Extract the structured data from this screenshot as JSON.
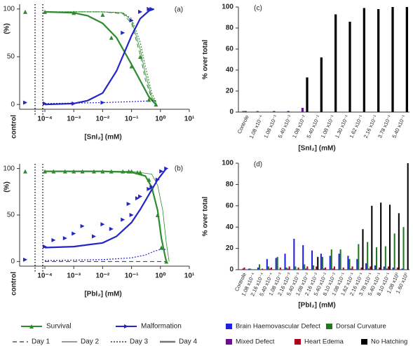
{
  "chart_data": [
    {
      "type": "line",
      "panel_label": "(a)",
      "y_label": "(%)",
      "x_label": "[SnI₂] (mM)",
      "control_label": "control",
      "xscale": "log",
      "xlim": [
        0.0001,
        10
      ],
      "xticks": [
        {
          "value": 0.0001,
          "label": "10⁻⁴"
        },
        {
          "value": 0.001,
          "label": "10⁻³"
        },
        {
          "value": 0.01,
          "label": "10⁻²"
        },
        {
          "value": 0.1,
          "label": "10⁻¹"
        },
        {
          "value": 1,
          "label": "10⁰"
        },
        {
          "value": 10,
          "label": "10¹"
        }
      ],
      "ylim": [
        -5,
        105
      ],
      "yticks": [
        0,
        50,
        100
      ],
      "series": [
        {
          "name": "Survival",
          "color": "#2e8b2e",
          "control": 97,
          "x": [
            0.0001,
            0.001,
            0.01,
            0.02,
            0.1,
            0.2,
            0.4,
            0.7
          ],
          "values": [
            97,
            96,
            94,
            70,
            40,
            50,
            5,
            0
          ]
        },
        {
          "name": "Malformation",
          "color": "#2424c8",
          "control": 2,
          "x": [
            0.0001,
            0.001,
            0.01,
            0.05,
            0.1,
            0.2,
            0.4,
            0.5
          ],
          "values": [
            1,
            1,
            2,
            75,
            88,
            97,
            100,
            100
          ]
        }
      ],
      "curves": [
        {
          "series": 0,
          "day": 4,
          "x": [
            0.0001,
            0.001,
            0.003,
            0.01,
            0.03,
            0.1,
            0.2,
            0.4,
            0.7
          ],
          "values": [
            97,
            96,
            93,
            85,
            70,
            42,
            25,
            8,
            0
          ]
        },
        {
          "series": 0,
          "day": 3,
          "x": [
            0.0001,
            0.01,
            0.05,
            0.1,
            0.2,
            0.3,
            0.5,
            0.7
          ],
          "values": [
            97,
            97,
            96,
            90,
            65,
            40,
            12,
            3
          ]
        },
        {
          "series": 0,
          "day": 2,
          "x": [
            0.0001,
            0.01,
            0.05,
            0.1,
            0.2,
            0.3,
            0.5,
            0.7
          ],
          "values": [
            97,
            97,
            96,
            88,
            58,
            32,
            8,
            2
          ]
        },
        {
          "series": 0,
          "day": 1,
          "x": [
            0.0001,
            0.01,
            0.05,
            0.1,
            0.2,
            0.3,
            0.5,
            0.7
          ],
          "values": [
            97,
            97,
            95,
            85,
            52,
            26,
            6,
            1
          ]
        },
        {
          "series": 1,
          "day": 4,
          "x": [
            0.0001,
            0.001,
            0.003,
            0.01,
            0.03,
            0.1,
            0.2,
            0.4,
            0.6
          ],
          "values": [
            0,
            1,
            4,
            12,
            35,
            72,
            90,
            98,
            100
          ]
        },
        {
          "series": 1,
          "day": 3,
          "x": [
            0.0001,
            0.01,
            0.1,
            0.7
          ],
          "values": [
            1,
            2,
            3,
            4
          ]
        }
      ]
    },
    {
      "type": "line",
      "panel_label": "(b)",
      "y_label": "(%)",
      "x_label": "[PbI₂] (mM)",
      "control_label": "control",
      "xscale": "log",
      "xlim": [
        0.0001,
        10
      ],
      "xticks": [
        {
          "value": 0.0001,
          "label": "10⁻⁴"
        },
        {
          "value": 0.001,
          "label": "10⁻³"
        },
        {
          "value": 0.01,
          "label": "10⁻²"
        },
        {
          "value": 0.1,
          "label": "10⁻¹"
        },
        {
          "value": 1,
          "label": "10⁰"
        },
        {
          "value": 10,
          "label": "10¹"
        }
      ],
      "ylim": [
        -5,
        105
      ],
      "yticks": [
        0,
        50,
        100
      ],
      "series": [
        {
          "color": "#2e8b2e",
          "control": 97,
          "x": [
            0.0001,
            0.0002,
            0.0005,
            0.001,
            0.002,
            0.005,
            0.01,
            0.02,
            0.05,
            0.08,
            0.1,
            0.16,
            0.2,
            0.4,
            0.5,
            0.8,
            1.08,
            1.6
          ],
          "values": [
            97,
            97,
            97,
            97,
            97,
            97,
            97,
            97,
            97,
            97,
            97,
            96,
            96,
            88,
            80,
            50,
            15,
            0
          ]
        },
        {
          "color": "#2424c8",
          "control": 2,
          "x": [
            0.0001,
            0.0002,
            0.0005,
            0.001,
            0.002,
            0.005,
            0.01,
            0.02,
            0.05,
            0.08,
            0.1,
            0.16,
            0.2,
            0.4,
            0.5,
            0.8,
            1.08,
            1.6
          ],
          "values": [
            16,
            23,
            25,
            30,
            38,
            27,
            40,
            35,
            45,
            62,
            50,
            68,
            70,
            78,
            80,
            88,
            97,
            100
          ]
        }
      ],
      "curves": [
        {
          "series": 0,
          "day": 4,
          "x": [
            0.0001,
            0.01,
            0.1,
            0.3,
            0.5,
            0.8,
            1.08,
            1.4,
            1.6
          ],
          "values": [
            97,
            97,
            96,
            92,
            80,
            55,
            25,
            8,
            0
          ]
        },
        {
          "series": 0,
          "day": 2,
          "x": [
            0.0001,
            0.01,
            0.1,
            0.5,
            0.8,
            1.2,
            1.6,
            2
          ],
          "values": [
            97,
            97,
            97,
            94,
            82,
            55,
            20,
            0
          ]
        },
        {
          "series": 1,
          "day": 4,
          "x": [
            0.0001,
            0.001,
            0.01,
            0.03,
            0.1,
            0.2,
            0.4,
            0.8,
            1.6
          ],
          "values": [
            15,
            16,
            20,
            27,
            42,
            56,
            72,
            88,
            100
          ]
        },
        {
          "series": 1,
          "day": 3,
          "x": [
            0.0001,
            0.01,
            0.1,
            0.3,
            0.6,
            1.0,
            1.6
          ],
          "values": [
            1,
            2,
            4,
            7,
            11,
            13,
            13
          ]
        },
        {
          "series": 1,
          "day": 1,
          "x": [
            0.0001,
            0.1,
            1.6
          ],
          "values": [
            0,
            0,
            0
          ]
        }
      ]
    },
    {
      "type": "bar",
      "panel_label": "(c)",
      "y_label": "% over total",
      "x_label": "[SnI₂] (mM)",
      "ylim": [
        0,
        100
      ],
      "yticks": [
        0,
        20,
        40,
        60,
        80,
        100
      ],
      "categories": [
        "Controle",
        "1.08 x10⁻⁴",
        "1.08 x10⁻³",
        "5.40 x10⁻³",
        "1.08 x10⁻²",
        "5.40 x10⁻²",
        "1.08 x10⁻¹",
        "1.30 x10⁻¹",
        "1.62 x10⁻¹",
        "2.16 x10⁻¹",
        "3.78 x10⁻¹",
        "5.40 x10⁻¹"
      ],
      "series": [
        {
          "name": "Brain Haemovascular Defect",
          "color": "#2020e0",
          "values": [
            0,
            0,
            0,
            0,
            0,
            0,
            0,
            0,
            0,
            0,
            0,
            0
          ]
        },
        {
          "name": "Dorsal Curvature",
          "color": "#1f7a1f",
          "values": [
            1,
            1,
            0,
            0,
            0,
            0,
            0,
            0,
            0,
            0,
            0,
            0
          ]
        },
        {
          "name": "Mixed Defect",
          "color": "#6a0f8e",
          "values": [
            1,
            0,
            1,
            1,
            4,
            0,
            0,
            0,
            0,
            0,
            0,
            0
          ]
        },
        {
          "name": "Heart Edema",
          "color": "#b00020",
          "values": [
            0,
            0,
            0,
            0,
            0,
            0,
            0,
            0,
            0,
            0,
            0,
            0
          ]
        },
        {
          "name": "No Hatching",
          "color": "#000000",
          "values": [
            0,
            0,
            0,
            0,
            33,
            52,
            93,
            86,
            99,
            98,
            100,
            100
          ]
        }
      ]
    },
    {
      "type": "bar",
      "panel_label": "(d)",
      "y_label": "% over total",
      "x_label": "[PbI₂] (mM)",
      "ylim": [
        0,
        100
      ],
      "yticks": [
        0,
        20,
        40,
        60,
        80,
        100
      ],
      "categories": [
        "Controle",
        "1.08 x10⁻⁴",
        "2.16 x10⁻⁴",
        "5.40 x10⁻⁴",
        "1.08 x10⁻³",
        "2.16 x10⁻³",
        "5.40 x10⁻³",
        "1.08 x10⁻²",
        "2.16 x10⁻²",
        "5.40 x10⁻²",
        "8.10 x10⁻²",
        "1.08 x10⁻¹",
        "1.62 x10⁻¹",
        "2.16 x10⁻¹",
        "3.78 x10⁻¹",
        "5.40 x10⁻¹",
        "8.10 x10⁻¹",
        "1.08 x10⁰",
        "1.60 x10⁰"
      ],
      "series": [
        {
          "color": "#2020e0",
          "values": [
            0,
            1,
            2,
            10,
            11,
            15,
            29,
            23,
            18,
            15,
            13,
            15,
            13,
            10,
            6,
            4,
            3,
            2,
            1
          ]
        },
        {
          "color": "#1f7a1f",
          "values": [
            0,
            1,
            5,
            3,
            12,
            2,
            3,
            5,
            4,
            12,
            19,
            19,
            10,
            24,
            26,
            21,
            22,
            34,
            40
          ]
        },
        {
          "color": "#6a0f8e",
          "values": [
            1,
            0,
            0,
            1,
            0,
            1,
            0,
            1,
            0,
            1,
            1,
            0,
            1,
            0,
            1,
            0,
            1,
            0,
            0
          ]
        },
        {
          "color": "#b00020",
          "values": [
            2,
            0,
            1,
            2,
            2,
            3,
            2,
            3,
            3,
            2,
            3,
            2,
            3,
            2,
            3,
            2,
            3,
            2,
            0
          ]
        },
        {
          "color": "#000000",
          "values": [
            0,
            0,
            0,
            0,
            0,
            0,
            0,
            0,
            12,
            0,
            0,
            0,
            0,
            38,
            60,
            63,
            61,
            53,
            100
          ]
        }
      ]
    }
  ],
  "legend": {
    "days": [
      "Day 1",
      "Day 2",
      "Day 3",
      "Day 4"
    ]
  }
}
